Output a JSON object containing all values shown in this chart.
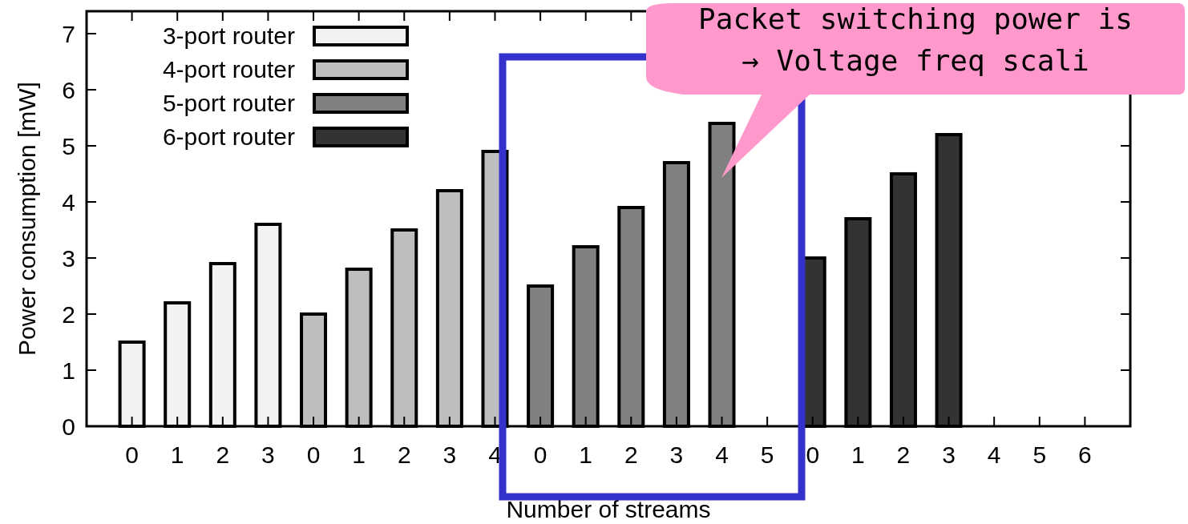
{
  "chart_data": {
    "type": "bar",
    "xlabel": "Number of streams",
    "ylabel": "Power consumption [mW]",
    "categories": [
      "0",
      "1",
      "2",
      "3",
      "0",
      "1",
      "2",
      "3",
      "4",
      "0",
      "1",
      "2",
      "3",
      "4",
      "5",
      "0",
      "1",
      "2",
      "3",
      "4",
      "5",
      "6"
    ],
    "series": [
      {
        "name": "3-port router",
        "color": "#f2f2f2",
        "values": [
          1.5,
          2.2,
          2.9,
          3.6,
          null,
          null,
          null,
          null,
          null,
          null,
          null,
          null,
          null,
          null,
          null,
          null,
          null,
          null,
          null,
          null,
          null,
          null
        ]
      },
      {
        "name": "4-port router",
        "color": "#bebebe",
        "values": [
          null,
          null,
          null,
          null,
          2.0,
          2.8,
          3.5,
          4.2,
          4.9,
          null,
          null,
          null,
          null,
          null,
          null,
          null,
          null,
          null,
          null,
          null,
          null,
          null
        ]
      },
      {
        "name": "5-port router",
        "color": "#808080",
        "values": [
          null,
          null,
          null,
          null,
          null,
          null,
          null,
          null,
          null,
          2.5,
          3.2,
          3.9,
          4.7,
          5.4,
          null,
          null,
          null,
          null,
          null,
          null,
          null,
          null
        ]
      },
      {
        "name": "6-port router",
        "color": "#333333",
        "values": [
          null,
          null,
          null,
          null,
          null,
          null,
          null,
          null,
          null,
          null,
          null,
          null,
          null,
          null,
          null,
          3.0,
          3.7,
          4.5,
          5.2,
          null,
          null,
          null
        ]
      }
    ],
    "ylim": [
      0,
      7.4
    ],
    "yticks": [
      0,
      1,
      2,
      3,
      4,
      5,
      6,
      7
    ],
    "grid": false,
    "legend": "top left",
    "annotations": [
      "Packet switching power is",
      "→ Voltage freq scali"
    ]
  }
}
